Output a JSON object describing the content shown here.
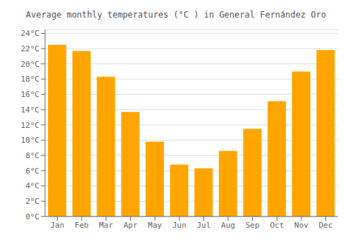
{
  "chart_data": {
    "type": "bar",
    "title": "Average monthly temperatures (°C ) in General Fernández Oro",
    "categories": [
      "Jan",
      "Feb",
      "Mar",
      "Apr",
      "May",
      "Jun",
      "Jul",
      "Aug",
      "Sep",
      "Oct",
      "Nov",
      "Dec"
    ],
    "values": [
      22.5,
      21.7,
      18.3,
      13.7,
      9.8,
      6.8,
      6.3,
      8.6,
      11.5,
      15.1,
      19.0,
      21.8
    ],
    "color": "#FFA500",
    "ylim": [
      0,
      24.5
    ],
    "yticks": [
      {
        "value": 0,
        "label": "0°C"
      },
      {
        "value": 2,
        "label": "2°C"
      },
      {
        "value": 4,
        "label": "4°C"
      },
      {
        "value": 6,
        "label": "6°C"
      },
      {
        "value": 8,
        "label": "8°C"
      },
      {
        "value": 10,
        "label": "10°C"
      },
      {
        "value": 12,
        "label": "12°C"
      },
      {
        "value": 14,
        "label": "14°C"
      },
      {
        "value": 16,
        "label": "16°C"
      },
      {
        "value": 18,
        "label": "18°C"
      },
      {
        "value": 20,
        "label": "20°C"
      },
      {
        "value": 22,
        "label": "22°C"
      },
      {
        "value": 24,
        "label": "24°C"
      }
    ],
    "grid": true
  }
}
